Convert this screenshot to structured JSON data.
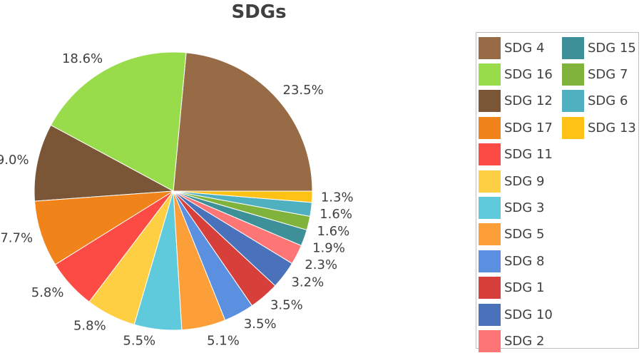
{
  "chart_data": {
    "type": "pie",
    "title": "SDGs",
    "legend_position": "right",
    "direction": "counterclockwise from 3 o'clock",
    "slices": [
      {
        "label": "SDG 4",
        "value": 23.5,
        "display": "23.5%",
        "color": "#976B45"
      },
      {
        "label": "SDG 16",
        "value": 18.6,
        "display": "18.6%",
        "color": "#98DC4C"
      },
      {
        "label": "SDG 12",
        "value": 9.0,
        "display": "9.0%",
        "color": "#7A5636"
      },
      {
        "label": "SDG 17",
        "value": 7.7,
        "display": "7.7%",
        "color": "#F0841A"
      },
      {
        "label": "SDG 11",
        "value": 5.8,
        "display": "5.8%",
        "color": "#FC4B45"
      },
      {
        "label": "SDG 9",
        "value": 5.8,
        "display": "5.8%",
        "color": "#FECF43"
      },
      {
        "label": "SDG 3",
        "value": 5.5,
        "display": "5.5%",
        "color": "#5FCADB"
      },
      {
        "label": "SDG 5",
        "value": 5.1,
        "display": "5.1%",
        "color": "#FD9F38"
      },
      {
        "label": "SDG 8",
        "value": 3.5,
        "display": "3.5%",
        "color": "#5B8FE0"
      },
      {
        "label": "SDG 1",
        "value": 3.5,
        "display": "3.5%",
        "color": "#D63F3A"
      },
      {
        "label": "SDG 10",
        "value": 3.2,
        "display": "3.2%",
        "color": "#4A72BA"
      },
      {
        "label": "SDG 2",
        "value": 2.3,
        "display": "2.3%",
        "color": "#FD7575"
      },
      {
        "label": "SDG 15",
        "value": 1.9,
        "display": "1.9%",
        "color": "#3D8F98"
      },
      {
        "label": "SDG 7",
        "value": 1.6,
        "display": "1.6%",
        "color": "#80B33B"
      },
      {
        "label": "SDG 6",
        "value": 1.6,
        "display": "1.6%",
        "color": "#4FB0BF"
      },
      {
        "label": "SDG 13",
        "value": 1.3,
        "display": "1.3%",
        "color": "#FDC215"
      }
    ]
  }
}
